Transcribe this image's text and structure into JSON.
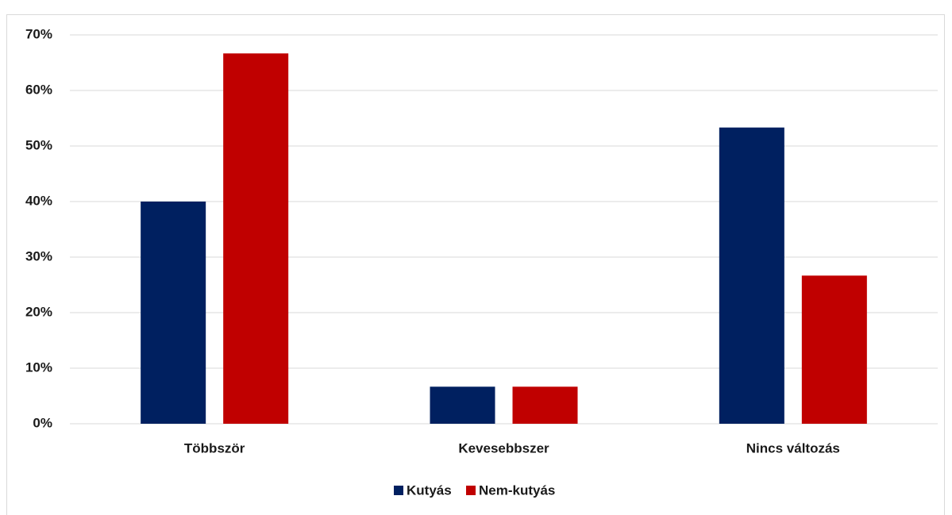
{
  "chart_data": {
    "type": "bar",
    "categories": [
      "Többször",
      "Kevesebbszer",
      "Nincs változás"
    ],
    "series": [
      {
        "name": "Kutyás",
        "color": "#002060",
        "values": [
          40,
          6.67,
          53.33
        ]
      },
      {
        "name": "Nem-kutyás",
        "color": "#c00000",
        "values": [
          66.67,
          6.67,
          26.67
        ]
      }
    ],
    "ylim": [
      0,
      70
    ],
    "yticks": [
      {
        "value": 0,
        "label": "0%"
      },
      {
        "value": 10,
        "label": "10%"
      },
      {
        "value": 20,
        "label": "20%"
      },
      {
        "value": 30,
        "label": "30%"
      },
      {
        "value": 40,
        "label": "40%"
      },
      {
        "value": 50,
        "label": "50%"
      },
      {
        "value": 60,
        "label": "60%"
      },
      {
        "value": 70,
        "label": "70%"
      }
    ],
    "grid": true,
    "legend": "bottom"
  }
}
